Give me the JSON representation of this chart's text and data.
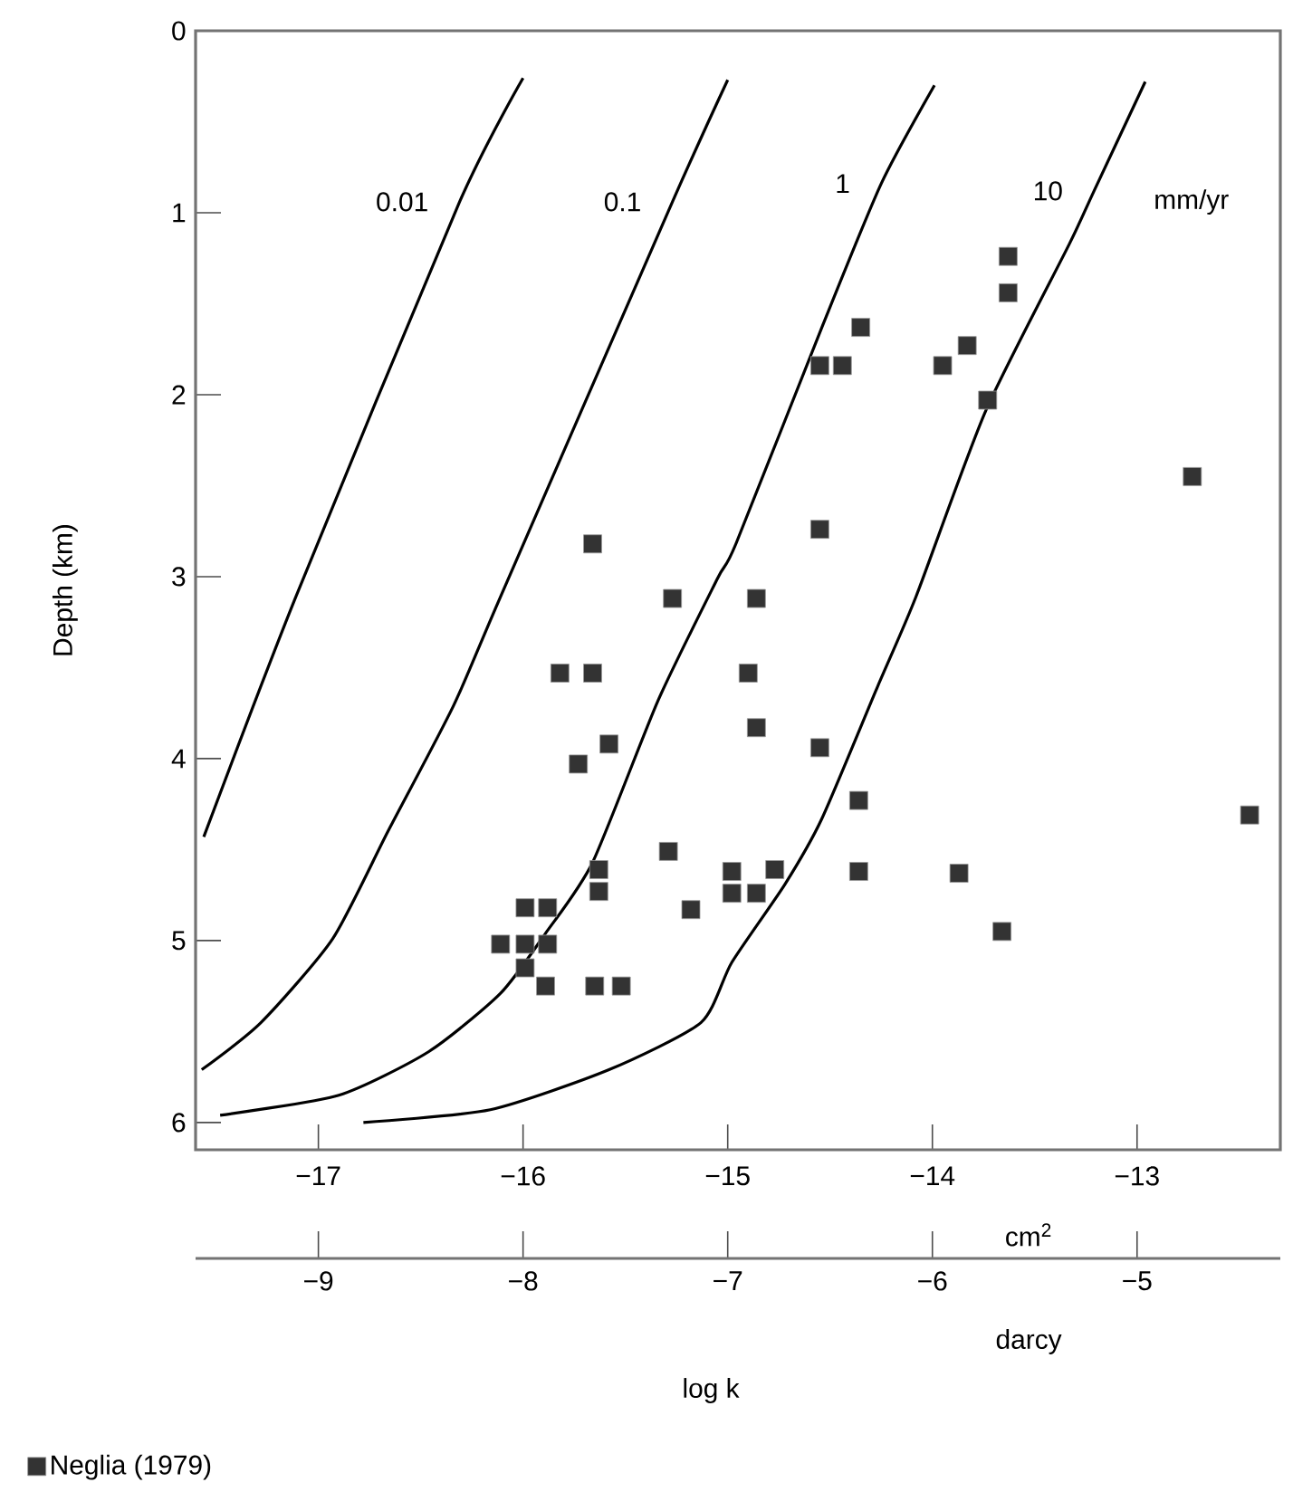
{
  "chart_data": {
    "type": "scatter",
    "xlabel": "cm$^{2}$",
    "x2label": "darcy",
    "ylabel": "Depth (km)",
    "annotations": [
      "mm/yr",
      "log k"
    ],
    "xlim": [
      -17.6,
      -12.3
    ],
    "ylim": [
      6.15,
      0
    ],
    "xticks": [
      {
        "value": -17,
        "label": "−17"
      },
      {
        "value": -16,
        "label": "−16"
      },
      {
        "value": -15,
        "label": "−15"
      },
      {
        "value": -14,
        "label": "−14"
      },
      {
        "value": -13,
        "label": "−13"
      }
    ],
    "yticks": [
      0,
      1,
      2,
      3,
      4,
      5,
      6
    ],
    "x2lim": [
      -9.6,
      -4.3
    ],
    "x2ticks": [
      {
        "value": -9,
        "label": "−9"
      },
      {
        "value": -8,
        "label": "−8"
      },
      {
        "value": -7,
        "label": "−7"
      },
      {
        "value": -6,
        "label": "−6"
      },
      {
        "value": -5,
        "label": "−5"
      }
    ],
    "legend": "bottom left",
    "marker": "square",
    "grid": false,
    "series": [
      {
        "name": "0.01",
        "type": "line",
        "marker": "none",
        "color": "#000000",
        "x": [
          -16.0,
          -16.31,
          -17.11,
          -17.56
        ],
        "values": [
          0.26,
          0.94,
          3.11,
          4.43
        ]
      },
      {
        "name": "0.1",
        "type": "line",
        "marker": "none",
        "color": "#000000",
        "x": [
          -15.0,
          -15.27,
          -16.11,
          -16.34,
          -16.66,
          -16.93,
          -17.28,
          -17.57
        ],
        "values": [
          0.27,
          0.94,
          3.11,
          3.71,
          4.4,
          4.99,
          5.45,
          5.71
        ]
      },
      {
        "name": "1",
        "type": "line",
        "marker": "none",
        "color": "#000000",
        "x": [
          -13.99,
          -14.25,
          -14.54,
          -14.96,
          -15.05,
          -15.34,
          -15.66,
          -15.89,
          -16.11,
          -16.46,
          -16.9,
          -17.48
        ],
        "values": [
          0.3,
          0.84,
          1.63,
          2.82,
          3.01,
          3.68,
          4.57,
          4.96,
          5.29,
          5.61,
          5.85,
          5.96
        ]
      },
      {
        "name": "10",
        "type": "line",
        "marker": "none",
        "color": "#000000",
        "x": [
          -12.96,
          -13.21,
          -13.33,
          -13.74,
          -14.08,
          -14.27,
          -14.54,
          -14.72,
          -14.98,
          -15.13,
          -15.58,
          -16.16,
          -16.78
        ],
        "values": [
          0.28,
          0.88,
          1.17,
          2.09,
          3.11,
          3.61,
          4.33,
          4.69,
          5.12,
          5.45,
          5.71,
          5.93,
          6.0
        ]
      },
      {
        "name": "Neglia (1979)",
        "color": "#333333",
        "x": [
          -13.63,
          -13.63,
          -14.35,
          -13.83,
          -14.55,
          -14.44,
          -13.95,
          -13.73,
          -12.73,
          -14.55,
          -15.66,
          -15.27,
          -14.86,
          -15.82,
          -15.66,
          -14.9,
          -15.58,
          -15.73,
          -14.55,
          -14.86,
          -14.36,
          -12.45,
          -15.29,
          -15.63,
          -15.63,
          -14.98,
          -14.98,
          -14.86,
          -14.77,
          -15.18,
          -14.36,
          -13.87,
          -13.66,
          -15.99,
          -15.88,
          -16.11,
          -15.99,
          -15.88,
          -15.99,
          -15.89,
          -15.65,
          -15.52
        ],
        "values": [
          1.24,
          1.44,
          1.63,
          1.73,
          1.84,
          1.84,
          1.84,
          2.03,
          2.45,
          2.74,
          2.82,
          3.12,
          3.12,
          3.53,
          3.53,
          3.53,
          3.92,
          4.03,
          3.94,
          3.83,
          4.23,
          4.31,
          4.51,
          4.61,
          4.73,
          4.62,
          4.74,
          4.74,
          4.61,
          4.83,
          4.62,
          4.63,
          4.95,
          4.82,
          4.82,
          5.02,
          5.02,
          5.02,
          5.15,
          5.25,
          5.25,
          5.25
        ]
      }
    ]
  }
}
